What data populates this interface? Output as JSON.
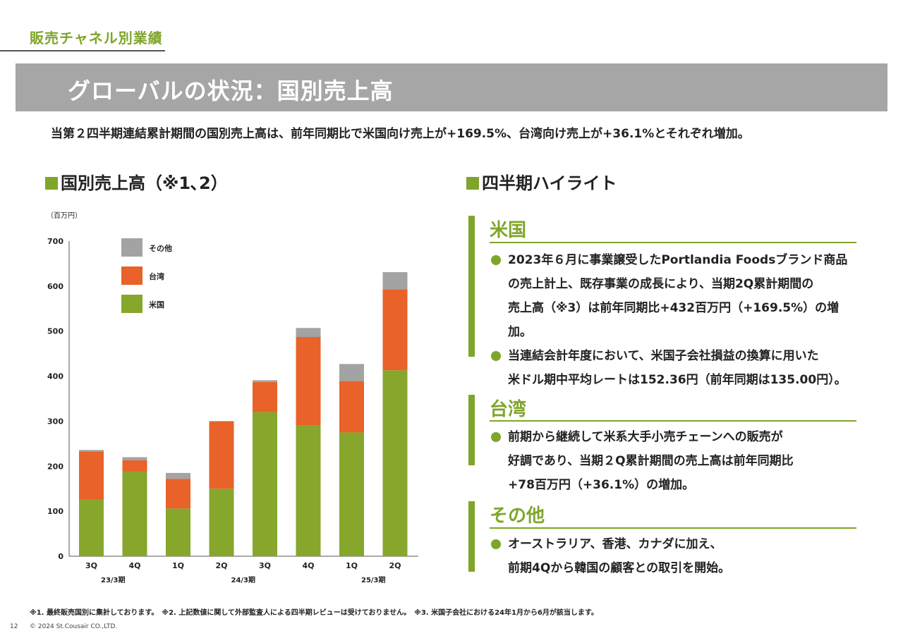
{
  "header": {
    "section_label": "販売チャネル別業績",
    "title": "グローバルの状況：国別売上高",
    "summary": "当第２四半期連結累計期間の国別売上高は、前年同期比で米国向け売上が+169.5%、台湾向け売上が+36.1%とそれぞれ増加。"
  },
  "chart_title": "国別売上高（※1､2）",
  "highlights_title": "四半期ハイライト",
  "colors": {
    "accent": "#7fa52b",
    "us": "#87a62c",
    "taiwan": "#e8622a",
    "other": "#a3a3a3",
    "title_band": "#a6a6a6"
  },
  "chart_data": {
    "type": "bar",
    "stacked": true,
    "unit_label": "（百万円）",
    "categories": [
      "3Q",
      "4Q",
      "1Q",
      "2Q",
      "3Q",
      "4Q",
      "1Q",
      "2Q"
    ],
    "periods": [
      {
        "label": "23/3期",
        "from": 0,
        "to": 1
      },
      {
        "label": "24/3期",
        "from": 2,
        "to": 5
      },
      {
        "label": "25/3期",
        "from": 6,
        "to": 7
      }
    ],
    "series": [
      {
        "name": "米国",
        "color": "#87a62c",
        "values": [
          126,
          188,
          106,
          150,
          320,
          290,
          275,
          413
        ]
      },
      {
        "name": "台湾",
        "color": "#e8622a",
        "values": [
          107,
          25,
          66,
          150,
          67,
          197,
          114,
          180
        ]
      },
      {
        "name": "その他",
        "color": "#a3a3a3",
        "values": [
          3,
          7,
          13,
          0,
          4,
          20,
          38,
          38
        ]
      }
    ],
    "legend_order": [
      "その他",
      "台湾",
      "米国"
    ],
    "ylim": [
      0,
      700
    ],
    "yticks": [
      0,
      100,
      200,
      300,
      400,
      500,
      600,
      700
    ],
    "grid": false,
    "legend_position": "top-left"
  },
  "regions": [
    {
      "name": "米国",
      "bullets": [
        "2023年６月に事業譲受したPortlandia Foodsブランド商品\nの売上計上、既存事業の成長により、当期2Q累計期間の\n売上高（※3）は前年同期比+432百万円（+169.5%）の増加。",
        "当連結会計年度において、米国子会社損益の換算に用いた\n米ドル期中平均レートは152.36円（前年同期は135.00円）。"
      ]
    },
    {
      "name": "台湾",
      "bullets": [
        "前期から継続して米系大手小売チェーンへの販売が\n好調であり、当期２Q累計期間の売上高は前年同期比\n+78百万円（+36.1%）の増加。"
      ]
    },
    {
      "name": "その他",
      "bullets": [
        "オーストラリア、香港、カナダに加え、\n前期4Qから韓国の顧客との取引を開始。"
      ]
    }
  ],
  "footnotes": "※1. 最終販売国別に集計しております。　※2. 上記数値に関して外部監査人による四半期レビューは受けておりません。　※3. 米国子会社における24年1月から6月が該当します。",
  "page_number": "12",
  "copyright": "© 2024 St.Cousair CO.,LTD."
}
